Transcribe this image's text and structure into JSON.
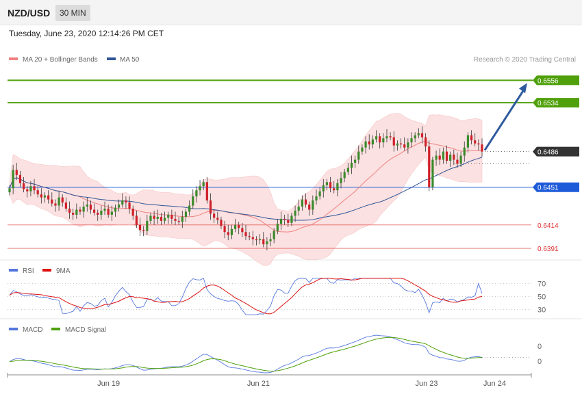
{
  "header": {
    "pair": "NZD/USD",
    "timeframe": "30 MIN"
  },
  "datetime": "Tuesday, June 23, 2020 12:14:26 PM CET",
  "legend": {
    "ma20": "MA 20 + Bollinger Bands",
    "ma50": "MA 50",
    "rsi": "RSI",
    "rsi_ma": "9MA",
    "macd": "MACD",
    "macd_signal": "MACD Signal"
  },
  "copyright": "Research © 2020 Trading Central",
  "colors": {
    "up": "#3a8a2a",
    "down": "#d0202a",
    "ma20": "#f08080",
    "ma50": "#2f5597",
    "bands": "#fadcdc",
    "target": "#4fa00a",
    "pivot": "#1e5bd8",
    "support": "#e03030",
    "arrow": "#2f5b9e",
    "last": "#333333",
    "rsi": "#5577dd",
    "rsi_ma": "#dd1111",
    "macd": "#5577dd",
    "macd_signal": "#4fa00a"
  },
  "price_levels": [
    {
      "value": 0.6556,
      "label": "0.6556",
      "kind": "target"
    },
    {
      "value": 0.6534,
      "label": "0.6534",
      "kind": "target"
    },
    {
      "value": 0.6486,
      "label": "0.6486",
      "kind": "last"
    },
    {
      "value": 0.6451,
      "label": "0.6451",
      "kind": "pivot"
    },
    {
      "value": 0.6414,
      "label": "0.6414",
      "kind": "support"
    },
    {
      "value": 0.6391,
      "label": "0.6391",
      "kind": "support"
    }
  ],
  "rsi_levels": [
    "70",
    "50",
    "30"
  ],
  "macd_levels": [
    "0",
    "0"
  ],
  "x_ticks": [
    "Jun 19",
    "Jun 21",
    "Jun 23",
    "Jun 24"
  ],
  "chart_data": {
    "type": "candlestick",
    "ylim": [
      0.6383,
      0.6571
    ],
    "closes": [
      0.645,
      0.6468,
      0.6463,
      0.6455,
      0.6449,
      0.6447,
      0.6452,
      0.6448,
      0.6444,
      0.6441,
      0.6443,
      0.6439,
      0.6435,
      0.6433,
      0.6441,
      0.6436,
      0.643,
      0.6426,
      0.6424,
      0.6429,
      0.6427,
      0.6432,
      0.6434,
      0.6429,
      0.6426,
      0.6424,
      0.6428,
      0.643,
      0.6424,
      0.6427,
      0.6431,
      0.6434,
      0.6438,
      0.6436,
      0.643,
      0.6423,
      0.6414,
      0.6409,
      0.6408,
      0.6418,
      0.6423,
      0.642,
      0.6422,
      0.6418,
      0.6421,
      0.6424,
      0.642,
      0.6418,
      0.6417,
      0.6422,
      0.6427,
      0.6433,
      0.6442,
      0.6448,
      0.6452,
      0.6456,
      0.6438,
      0.6425,
      0.6421,
      0.6419,
      0.6413,
      0.6407,
      0.6404,
      0.641,
      0.6414,
      0.6411,
      0.6407,
      0.6403,
      0.6402,
      0.64,
      0.6399,
      0.64,
      0.6395,
      0.6398,
      0.64,
      0.6408,
      0.6415,
      0.642,
      0.6419,
      0.6416,
      0.6423,
      0.6428,
      0.6432,
      0.6439,
      0.6434,
      0.6429,
      0.6438,
      0.6442,
      0.6447,
      0.6453,
      0.6456,
      0.645,
      0.6448,
      0.6455,
      0.646,
      0.6466,
      0.647,
      0.6475,
      0.6478,
      0.6486,
      0.649,
      0.6496,
      0.6493,
      0.6498,
      0.6501,
      0.6495,
      0.6499,
      0.6501,
      0.65,
      0.6492,
      0.6494,
      0.6493,
      0.649,
      0.6495,
      0.6499,
      0.6502,
      0.6504,
      0.65,
      0.6491,
      0.6451,
      0.6478,
      0.6482,
      0.6478,
      0.6486,
      0.6477,
      0.6483,
      0.6478,
      0.6474,
      0.6482,
      0.649,
      0.6502,
      0.6497,
      0.6494,
      0.6493,
      0.6486
    ],
    "x_tick_positions": [
      0.193,
      0.479,
      0.8,
      0.93
    ],
    "ma20_last": 0.6483,
    "ma50_last": 0.6476,
    "rsi_closes_shape": "derived"
  }
}
